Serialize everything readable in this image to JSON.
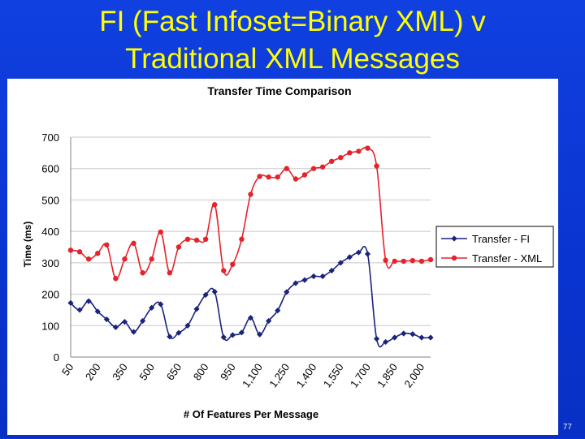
{
  "slide": {
    "title_line1": "FI (Fast Infoset=Binary XML) v",
    "title_line2": "Traditional XML Messages",
    "slide_number": "77",
    "title_color": "#ffff00",
    "background_color": "#0a36d6"
  },
  "chart_data": {
    "type": "line",
    "title": "Transfer Time Comparison",
    "xlabel": "# Of Features Per Message",
    "ylabel": "Time (ms)",
    "ylim": [
      0,
      700
    ],
    "yticks": [
      "0",
      "100",
      "200",
      "300",
      "400",
      "500",
      "600",
      "700"
    ],
    "grid": "horizontal",
    "legend_position": "right",
    "x": [
      50,
      100,
      150,
      200,
      250,
      300,
      350,
      400,
      450,
      500,
      550,
      600,
      650,
      700,
      750,
      800,
      850,
      900,
      950,
      1000,
      1050,
      1100,
      1150,
      1200,
      1250,
      1300,
      1350,
      1400,
      1450,
      1500,
      1550,
      1600,
      1650,
      1700,
      1750,
      1800,
      1850,
      1900,
      1950,
      2000,
      2050
    ],
    "xtick_labels": [
      "50",
      "200",
      "350",
      "500",
      "650",
      "800",
      "950",
      "1,100",
      "1,250",
      "1,400",
      "1,550",
      "1,700",
      "1,850",
      "2,000"
    ],
    "series": [
      {
        "name": "Transfer - FI",
        "color": "#1a237e",
        "marker": "diamond",
        "values": [
          172,
          150,
          178,
          145,
          120,
          95,
          112,
          80,
          115,
          157,
          168,
          65,
          77,
          100,
          153,
          198,
          208,
          63,
          70,
          78,
          125,
          72,
          115,
          148,
          207,
          235,
          245,
          257,
          257,
          275,
          300,
          318,
          333,
          328,
          58,
          48,
          62,
          75,
          73,
          62,
          62
        ]
      },
      {
        "name": "Transfer - XML",
        "color": "#e5232b",
        "marker": "circle",
        "values": [
          340,
          335,
          312,
          330,
          357,
          250,
          312,
          362,
          268,
          312,
          398,
          268,
          350,
          375,
          372,
          375,
          485,
          275,
          295,
          375,
          518,
          575,
          573,
          573,
          600,
          567,
          580,
          600,
          605,
          623,
          635,
          650,
          655,
          665,
          608,
          308,
          305,
          305,
          307,
          305,
          310
        ]
      }
    ]
  }
}
